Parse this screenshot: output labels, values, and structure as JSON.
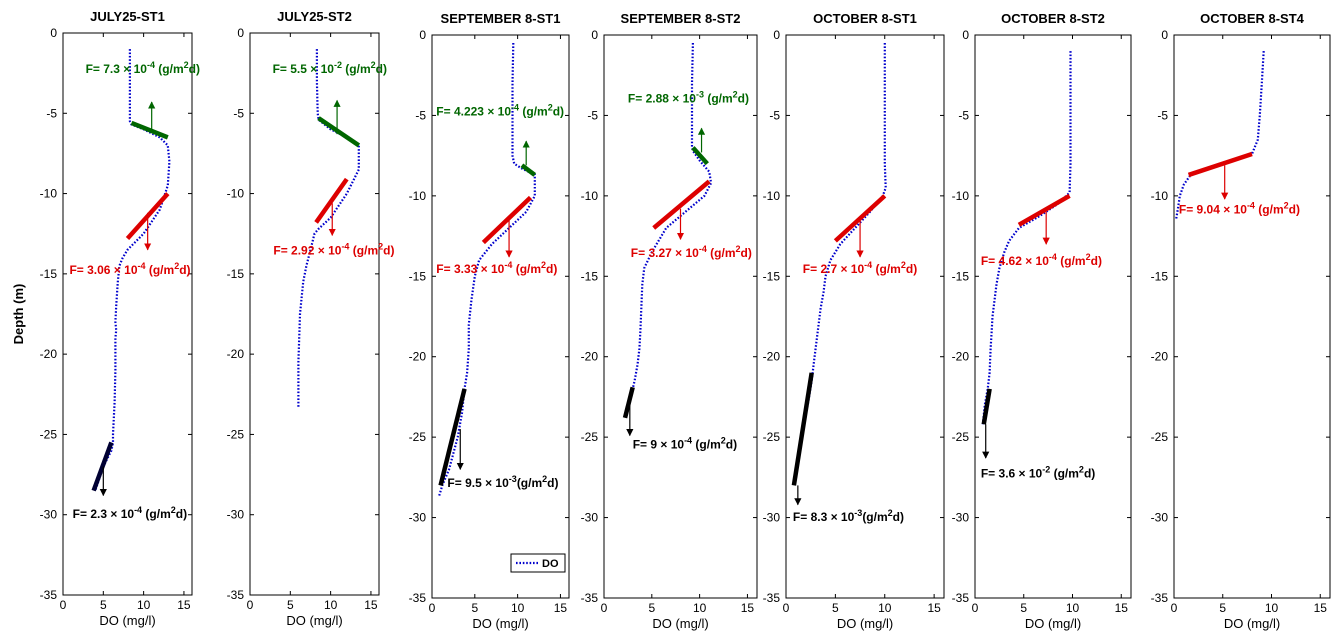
{
  "chart_data": [
    {
      "type": "line",
      "title": "JULY25-ST1",
      "xlabel": "DO (mg/l)",
      "ylabel": "Depth (m)",
      "xlim": [
        0,
        16
      ],
      "ylim": [
        -35,
        0
      ],
      "xticks": [
        0,
        5,
        10,
        15
      ],
      "yticks": [
        0,
        -5,
        -10,
        -15,
        -20,
        -25,
        -30,
        -35
      ],
      "series": [
        {
          "name": "DO",
          "color": "#0000cc",
          "style": "dotted",
          "x": [
            8.3,
            8.3,
            8.3,
            8.3,
            8.5,
            10.0,
            12.0,
            13.0,
            13.2,
            13.0,
            12.0,
            10.0,
            8.0,
            7.4,
            7.0,
            6.8,
            6.6,
            6.5,
            6.6,
            6.5,
            6.5,
            6.4,
            6.3,
            6.2,
            6.2,
            6.0,
            5.0,
            4.0
          ],
          "y": [
            -1,
            -3,
            -5,
            -5.5,
            -5.7,
            -6.0,
            -6.5,
            -7,
            -8,
            -9.5,
            -11,
            -12.5,
            -13.5,
            -14,
            -14.5,
            -15.5,
            -17,
            -18,
            -18.5,
            -19,
            -21,
            -23,
            -24,
            -25,
            -25.5,
            -26,
            -27,
            -28.5
          ]
        }
      ],
      "segments": [
        {
          "color": "#006600",
          "x": [
            8.5,
            13.0
          ],
          "y": [
            -5.6,
            -6.5
          ]
        },
        {
          "color": "#dd0000",
          "x": [
            8.0,
            13.0
          ],
          "y": [
            -12.8,
            -10.0
          ]
        },
        {
          "color": "#000033",
          "x": [
            3.8,
            6.0
          ],
          "y": [
            -28.5,
            -25.5
          ]
        }
      ],
      "arrows": [
        {
          "color": "#006600",
          "x": 11.0,
          "y0": -6.0,
          "y1": -4.3
        },
        {
          "color": "#dd0000",
          "x": 10.5,
          "y0": -11.2,
          "y1": -13.5
        },
        {
          "color": "#000000",
          "x": 5.0,
          "y0": -27.0,
          "y1": -28.8
        }
      ],
      "annotations": [
        {
          "color": "#006600",
          "x": 2.8,
          "y": -2.5,
          "base": "F= 7.3 × 10",
          "exp": "-4",
          "unit": " (g/m",
          "unitexp": "2",
          "tail": "d)"
        },
        {
          "color": "#dd0000",
          "x": 0.8,
          "y": -15.0,
          "base": "F= 3.06 × 10",
          "exp": "-4",
          "unit": " (g/m",
          "unitexp": "2",
          "tail": "d)"
        },
        {
          "color": "#000000",
          "x": 1.2,
          "y": -30.2,
          "base": "F= 2.3 × 10",
          "exp": "-4",
          "unit": " (g/m",
          "unitexp": "2",
          "tail": "d)"
        }
      ]
    },
    {
      "type": "line",
      "title": "JULY25-ST2",
      "xlabel": "DO (mg/l)",
      "ylabel": "",
      "xlim": [
        0,
        16
      ],
      "ylim": [
        -35,
        0
      ],
      "xticks": [
        0,
        5,
        10,
        15
      ],
      "yticks": [
        0,
        -5,
        -10,
        -15,
        -20,
        -25,
        -30,
        -35
      ],
      "series": [
        {
          "name": "DO",
          "color": "#0000cc",
          "style": "dotted",
          "x": [
            8.3,
            8.3,
            8.4,
            8.5,
            10.0,
            12.0,
            13.5,
            13.5,
            12.0,
            10.0,
            8.5,
            8.0,
            7.5,
            7.0,
            6.6,
            6.4,
            6.2,
            6.1,
            6.0,
            6.0,
            6.0
          ],
          "y": [
            -1,
            -3,
            -5,
            -5.4,
            -6.0,
            -6.5,
            -7,
            -8.5,
            -10,
            -11.5,
            -12.2,
            -12.5,
            -13.5,
            -14.5,
            -15.5,
            -16.5,
            -17.5,
            -19,
            -20.5,
            -22,
            -23.3
          ]
        }
      ],
      "segments": [
        {
          "color": "#006600",
          "x": [
            8.5,
            13.5
          ],
          "y": [
            -5.3,
            -7.0
          ]
        },
        {
          "color": "#dd0000",
          "x": [
            8.2,
            12.0
          ],
          "y": [
            -11.8,
            -9.1
          ]
        }
      ],
      "arrows": [
        {
          "color": "#006600",
          "x": 10.8,
          "y0": -6.3,
          "y1": -4.2
        },
        {
          "color": "#dd0000",
          "x": 10.2,
          "y0": -10.6,
          "y1": -12.6
        }
      ],
      "annotations": [
        {
          "color": "#006600",
          "x": 2.8,
          "y": -2.5,
          "base": "F= 5.5 × 10",
          "exp": "-2",
          "unit": " (g/m",
          "unitexp": "2",
          "tail": "d)"
        },
        {
          "color": "#dd0000",
          "x": 2.9,
          "y": -13.8,
          "base": "F= 2.92 × 10",
          "exp": "-4",
          "unit": " (g/m",
          "unitexp": "2",
          "tail": "d)"
        }
      ]
    },
    {
      "type": "line",
      "title": "SEPTEMBER 8-ST1",
      "xlabel": "DO (mg/l)",
      "ylabel": "",
      "xlim": [
        0,
        16
      ],
      "ylim": [
        -35,
        0
      ],
      "xticks": [
        0,
        5,
        10,
        15
      ],
      "yticks": [
        0,
        -5,
        -10,
        -15,
        -20,
        -25,
        -30,
        -35
      ],
      "legend": {
        "label": "DO",
        "position": "bottom-right"
      },
      "series": [
        {
          "name": "DO",
          "color": "#0000cc",
          "style": "dotted",
          "x": [
            9.5,
            9.4,
            9.4,
            9.4,
            9.6,
            10.5,
            12.0,
            12.0,
            11.0,
            9.0,
            7.0,
            5.5,
            5.0,
            4.6,
            4.3,
            4.3,
            4.1,
            3.8,
            3.5,
            3.0,
            2.0,
            1.2,
            0.8
          ],
          "y": [
            -0.5,
            -3,
            -6,
            -7.5,
            -8.0,
            -8.3,
            -8.7,
            -10.0,
            -11,
            -12,
            -13,
            -14,
            -15,
            -16.5,
            -18,
            -19.5,
            -21,
            -22,
            -23.5,
            -25,
            -27,
            -28,
            -28.7
          ]
        }
      ],
      "segments": [
        {
          "color": "#006600",
          "x": [
            10.5,
            12.0
          ],
          "y": [
            -8.1,
            -8.7
          ]
        },
        {
          "color": "#dd0000",
          "x": [
            6.0,
            11.5
          ],
          "y": [
            -12.9,
            -10.1
          ]
        },
        {
          "color": "#000000",
          "x": [
            1.0,
            3.8
          ],
          "y": [
            -28.0,
            -22.0
          ]
        }
      ],
      "arrows": [
        {
          "color": "#006600",
          "x": 11.0,
          "y0": -8.1,
          "y1": -6.6
        },
        {
          "color": "#dd0000",
          "x": 9.0,
          "y0": -11.5,
          "y1": -13.8
        },
        {
          "color": "#000000",
          "x": 3.3,
          "y0": -24.5,
          "y1": -27.0
        }
      ],
      "annotations": [
        {
          "color": "#006600",
          "x": 0.5,
          "y": -5.0,
          "base": "F= 4.223 × 10",
          "exp": "-4",
          "unit": " (g/m",
          "unitexp": "2",
          "tail": "d)"
        },
        {
          "color": "#dd0000",
          "x": 0.5,
          "y": -14.8,
          "base": "F= 3.33 × 10",
          "exp": "-4",
          "unit": " (g/m",
          "unitexp": "2",
          "tail": "d)"
        },
        {
          "color": "#000000",
          "x": 1.8,
          "y": -28.1,
          "base": "F= 9.5 × 10",
          "exp": "-3",
          "unit": "(g/m",
          "unitexp": "2",
          "tail": "d)"
        }
      ]
    },
    {
      "type": "line",
      "title": "SEPTEMBER 8-ST2",
      "xlabel": "DO (mg/l)",
      "ylabel": "",
      "xlim": [
        0,
        16
      ],
      "ylim": [
        -35,
        0
      ],
      "xticks": [
        0,
        5,
        10,
        15
      ],
      "yticks": [
        0,
        -5,
        -10,
        -15,
        -20,
        -25,
        -30,
        -35
      ],
      "series": [
        {
          "name": "DO",
          "color": "#0000cc",
          "style": "dotted",
          "x": [
            9.3,
            9.2,
            9.2,
            9.2,
            9.3,
            10.0,
            11.0,
            11.2,
            10.5,
            8.5,
            6.5,
            5.0,
            4.2,
            4.0,
            3.9,
            3.8,
            3.7,
            3.5,
            3.2,
            2.8,
            2.3
          ],
          "y": [
            -0.5,
            -3,
            -5,
            -7,
            -7.2,
            -7.8,
            -8.5,
            -9.2,
            -10,
            -11,
            -12,
            -13.5,
            -14.5,
            -15.5,
            -17,
            -18.5,
            -19.5,
            -20.5,
            -21.5,
            -22.5,
            -23.8
          ]
        }
      ],
      "segments": [
        {
          "color": "#006600",
          "x": [
            9.3,
            10.8
          ],
          "y": [
            -7.0,
            -8.0
          ]
        },
        {
          "color": "#dd0000",
          "x": [
            5.2,
            11.0
          ],
          "y": [
            -12.0,
            -9.1
          ]
        },
        {
          "color": "#000000",
          "x": [
            2.2,
            3.0
          ],
          "y": [
            -23.8,
            -21.9
          ]
        }
      ],
      "arrows": [
        {
          "color": "#006600",
          "x": 10.2,
          "y0": -7.3,
          "y1": -5.8
        },
        {
          "color": "#dd0000",
          "x": 8.0,
          "y0": -10.8,
          "y1": -12.7
        },
        {
          "color": "#000000",
          "x": 2.7,
          "y0": -23.0,
          "y1": -24.9
        }
      ],
      "annotations": [
        {
          "color": "#006600",
          "x": 2.5,
          "y": -4.2,
          "base": "F= 2.88 × 10",
          "exp": "-3",
          "unit": " (g/m",
          "unitexp": "2",
          "tail": "d)"
        },
        {
          "color": "#dd0000",
          "x": 2.8,
          "y": -13.8,
          "base": "F= 3.27 × 10",
          "exp": "-4",
          "unit": " (g/m",
          "unitexp": "2",
          "tail": "d)"
        },
        {
          "color": "#000000",
          "x": 3.0,
          "y": -25.7,
          "base": "F= 9 × 10",
          "exp": "-4",
          "unit": " (g/m",
          "unitexp": "2",
          "tail": "d)"
        }
      ]
    },
    {
      "type": "line",
      "title": "OCTOBER 8-ST1",
      "xlabel": "DO (mg/l)",
      "ylabel": "",
      "xlim": [
        0,
        16
      ],
      "ylim": [
        -35,
        0
      ],
      "xticks": [
        0,
        5,
        10,
        15
      ],
      "yticks": [
        0,
        -5,
        -10,
        -15,
        -20,
        -25,
        -30,
        -35
      ],
      "series": [
        {
          "name": "DO",
          "color": "#0000cc",
          "style": "dotted",
          "x": [
            10.0,
            10.0,
            10.0,
            10.0,
            10.1,
            9.8,
            8.5,
            7.0,
            5.5,
            4.5,
            4.0,
            3.8,
            3.5,
            3.2,
            3.0,
            2.8,
            2.6,
            2.2,
            1.6,
            1.0,
            0.8
          ],
          "y": [
            -0.5,
            -3,
            -6,
            -8,
            -9.5,
            -10.0,
            -11,
            -12,
            -13,
            -14,
            -15,
            -16,
            -17,
            -18.5,
            -19.5,
            -20.5,
            -21.5,
            -23,
            -25,
            -27,
            -28
          ]
        }
      ],
      "segments": [
        {
          "color": "#dd0000",
          "x": [
            5.0,
            10.0
          ],
          "y": [
            -12.8,
            -10.0
          ]
        },
        {
          "color": "#000000",
          "x": [
            0.8,
            2.6
          ],
          "y": [
            -28.0,
            -21.0
          ]
        }
      ],
      "arrows": [
        {
          "color": "#dd0000",
          "x": 7.5,
          "y0": -11.5,
          "y1": -13.8
        },
        {
          "color": "#000000",
          "x": 1.2,
          "y0": -28.0,
          "y1": -29.2
        }
      ],
      "annotations": [
        {
          "color": "#dd0000",
          "x": 1.7,
          "y": -14.8,
          "base": "F= 2.7 × 10",
          "exp": "-4",
          "unit": " (g/m",
          "unitexp": "2",
          "tail": "d)"
        },
        {
          "color": "#000000",
          "x": 0.7,
          "y": -30.2,
          "base": "F= 8.3 × 10",
          "exp": "-3",
          "unit": "(g/m",
          "unitexp": "2",
          "tail": "d)"
        }
      ]
    },
    {
      "type": "line",
      "title": "OCTOBER 8-ST2",
      "xlabel": "DO (mg/l)",
      "ylabel": "",
      "xlim": [
        0,
        16
      ],
      "ylim": [
        -35,
        0
      ],
      "xticks": [
        0,
        5,
        10,
        15
      ],
      "yticks": [
        0,
        -5,
        -10,
        -15,
        -20,
        -25,
        -30,
        -35
      ],
      "series": [
        {
          "name": "DO",
          "color": "#0000cc",
          "style": "dotted",
          "x": [
            9.8,
            9.8,
            9.8,
            9.8,
            9.7,
            8.5,
            6.5,
            4.5,
            3.5,
            3.0,
            2.5,
            2.2,
            2.0,
            1.8,
            1.7,
            1.6,
            1.5,
            1.3,
            1.0,
            0.8
          ],
          "y": [
            -1,
            -3,
            -6,
            -8,
            -9.8,
            -10.5,
            -11.3,
            -12,
            -12.8,
            -13.5,
            -14.5,
            -15.5,
            -16.5,
            -17.5,
            -18.5,
            -19.5,
            -21,
            -22,
            -23,
            -24.2
          ]
        }
      ],
      "segments": [
        {
          "color": "#dd0000",
          "x": [
            4.5,
            9.7
          ],
          "y": [
            -11.8,
            -10.0
          ]
        },
        {
          "color": "#000000",
          "x": [
            0.9,
            1.5
          ],
          "y": [
            -24.2,
            -22.0
          ]
        }
      ],
      "arrows": [
        {
          "color": "#dd0000",
          "x": 7.3,
          "y0": -11.0,
          "y1": -13.0
        },
        {
          "color": "#000000",
          "x": 1.1,
          "y0": -24.2,
          "y1": -26.3
        }
      ],
      "annotations": [
        {
          "color": "#dd0000",
          "x": 0.6,
          "y": -14.3,
          "base": "F= 4.62 × 10",
          "exp": "-4",
          "unit": " (g/m",
          "unitexp": "2",
          "tail": "d)"
        },
        {
          "color": "#000000",
          "x": 0.6,
          "y": -27.5,
          "base": "F= 3.6 × 10",
          "exp": "-2",
          "unit": " (g/m",
          "unitexp": "2",
          "tail": "d)"
        }
      ]
    },
    {
      "type": "line",
      "title": "OCTOBER 8-ST4",
      "xlabel": "DO (mg/l)",
      "ylabel": "",
      "xlim": [
        0,
        16
      ],
      "ylim": [
        -35,
        0
      ],
      "xticks": [
        0,
        5,
        10,
        15
      ],
      "yticks": [
        0,
        -5,
        -10,
        -15,
        -20,
        -25,
        -30,
        -35
      ],
      "series": [
        {
          "name": "DO",
          "color": "#0000cc",
          "style": "dotted",
          "x": [
            9.2,
            9.0,
            8.8,
            8.6,
            8.0,
            6.0,
            3.5,
            1.7,
            1.0,
            0.6,
            0.4,
            0.2
          ],
          "y": [
            -1,
            -3,
            -5,
            -6.5,
            -7.4,
            -7.8,
            -8.3,
            -8.7,
            -9.3,
            -10,
            -10.8,
            -11.5
          ]
        }
      ],
      "segments": [
        {
          "color": "#dd0000",
          "x": [
            1.5,
            8.0
          ],
          "y": [
            -8.7,
            -7.4
          ]
        }
      ],
      "arrows": [
        {
          "color": "#dd0000",
          "x": 5.2,
          "y0": -8.1,
          "y1": -10.2
        }
      ],
      "annotations": [
        {
          "color": "#dd0000",
          "x": 0.5,
          "y": -11.1,
          "base": "F= 9.04 × 10",
          "exp": "-4",
          "unit": " (g/m",
          "unitexp": "2",
          "tail": "d)"
        }
      ]
    }
  ]
}
